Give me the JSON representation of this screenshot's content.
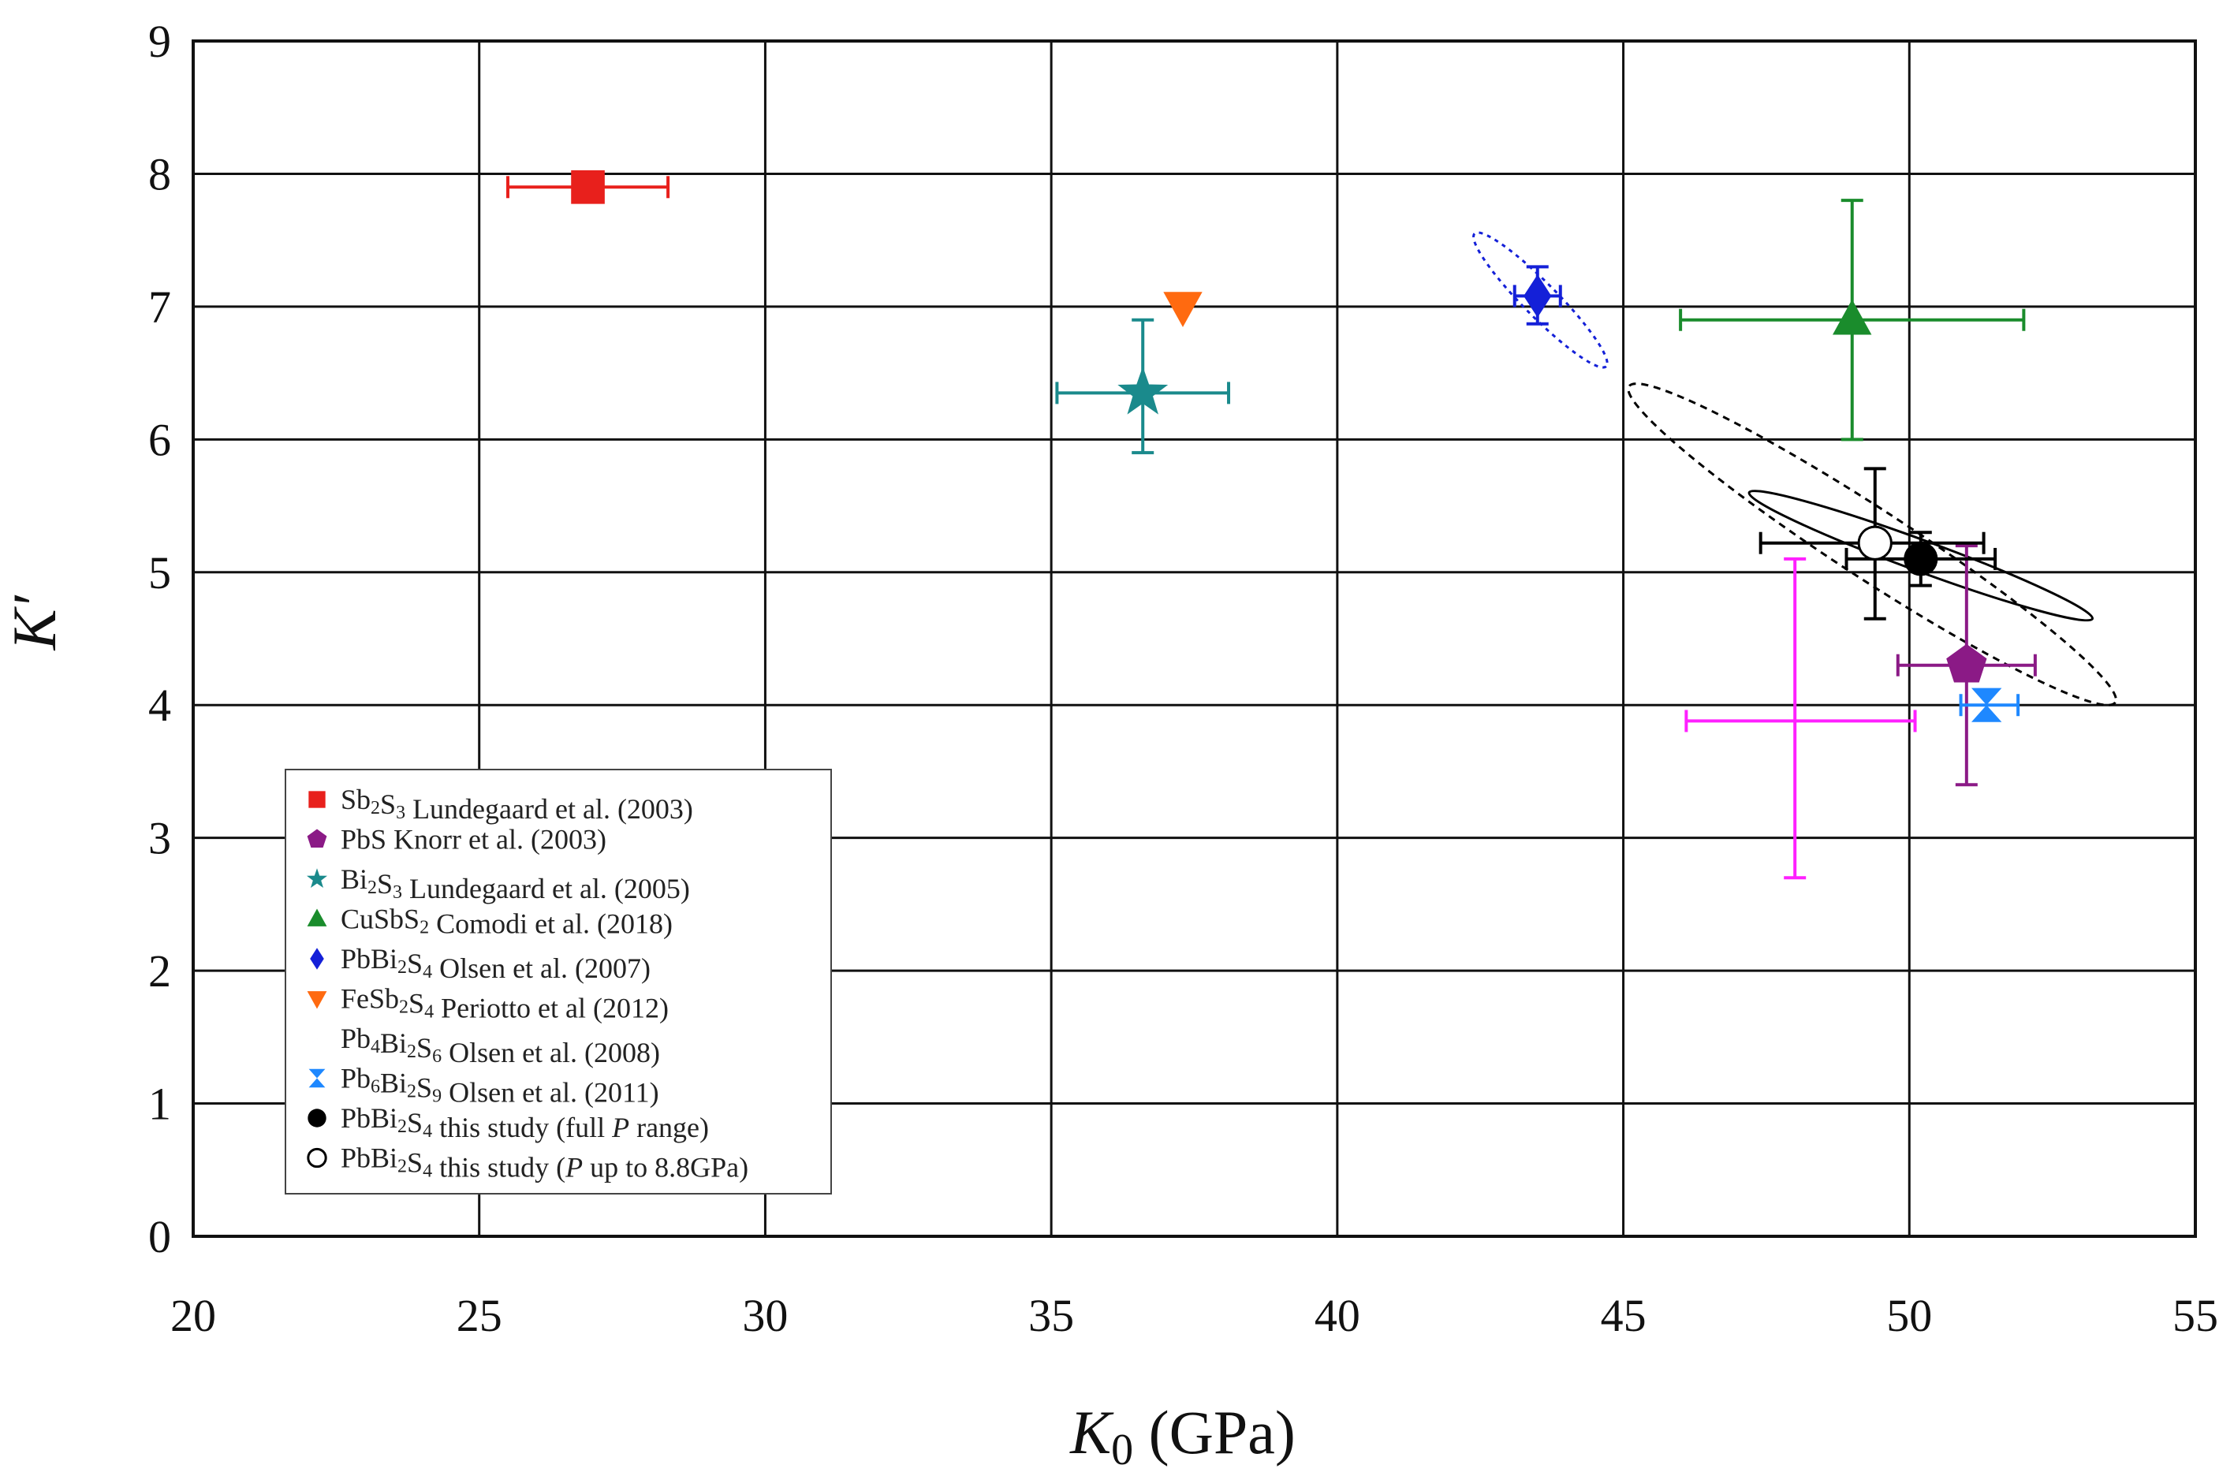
{
  "chart_data": {
    "type": "scatter",
    "title": "",
    "xlabel": {
      "main": "K",
      "sub": "0",
      "unit": " (GPa)"
    },
    "ylabel": "K′",
    "xlim": [
      20,
      55
    ],
    "ylim": [
      0,
      9
    ],
    "xticks": [
      20,
      25,
      30,
      35,
      40,
      45,
      50,
      55
    ],
    "yticks": [
      0,
      1,
      2,
      3,
      4,
      5,
      6,
      7,
      8,
      9
    ],
    "grid": true,
    "legend_position": "bottom-left",
    "series": [
      {
        "name": "Sb2S3 Lundegaard et al. (2003)",
        "marker": "square",
        "color": "#e8201c",
        "legend": [
          {
            "t": "Sb"
          },
          {
            "t": "2",
            "s": "sub"
          },
          {
            "t": "S"
          },
          {
            "t": "3",
            "s": "sub"
          },
          {
            "t": " Lundegaard et al. (2003)"
          }
        ],
        "points": [
          {
            "x": 26.9,
            "y": 7.9,
            "xerr": [
              25.5,
              28.3
            ]
          }
        ]
      },
      {
        "name": "PbS Knorr et al. (2003)",
        "marker": "pentagon",
        "color": "#8b1a86",
        "legend": [
          {
            "t": "PbS Knorr et al. (2003)"
          }
        ],
        "points": [
          {
            "x": 51.0,
            "y": 4.3,
            "xerr": [
              49.8,
              52.2
            ],
            "yerr": [
              3.4,
              5.2
            ]
          }
        ]
      },
      {
        "name": "Bi2S3 Lundegaard et al. (2005)",
        "marker": "star",
        "color": "#1a8a8c",
        "legend": [
          {
            "t": "Bi"
          },
          {
            "t": "2",
            "s": "sub"
          },
          {
            "t": "S"
          },
          {
            "t": "3",
            "s": "sub"
          },
          {
            "t": " Lundegaard et al. (2005)"
          }
        ],
        "points": [
          {
            "x": 36.6,
            "y": 6.35,
            "xerr": [
              35.1,
              38.1
            ],
            "yerr": [
              5.9,
              6.9
            ]
          }
        ]
      },
      {
        "name": "CuSbS2 Comodi et al. (2018)",
        "marker": "triangle-up",
        "color": "#1a8c2c",
        "legend": [
          {
            "t": "CuSbS"
          },
          {
            "t": "2",
            "s": "sub"
          },
          {
            "t": " Comodi et al. (2018)"
          }
        ],
        "points": [
          {
            "x": 49.0,
            "y": 6.9,
            "xerr": [
              46.0,
              52.0
            ],
            "yerr": [
              6.0,
              7.8
            ]
          }
        ]
      },
      {
        "name": "PbBi2S4 Olsen et al. (2007)",
        "marker": "diamond",
        "color": "#1420d8",
        "legend": [
          {
            "t": "PbBi"
          },
          {
            "t": "2",
            "s": "sub"
          },
          {
            "t": "S"
          },
          {
            "t": "4",
            "s": "sub"
          },
          {
            "t": " Olsen et al. (2007)"
          }
        ],
        "points": [
          {
            "x": 43.5,
            "y": 7.08,
            "xerr": [
              43.1,
              43.9
            ],
            "yerr": [
              6.87,
              7.3
            ]
          }
        ],
        "ellipse": {
          "from": [
            42.4,
            7.55
          ],
          "to": [
            44.7,
            6.55
          ],
          "minor_ratio": 0.18,
          "dash": "dotted",
          "color": "#1420d8"
        }
      },
      {
        "name": "FeSb2S4 Periotto et al (2012)",
        "marker": "triangle-down",
        "color": "#ff6a10",
        "legend": [
          {
            "t": "FeSb"
          },
          {
            "t": "2",
            "s": "sub"
          },
          {
            "t": "S"
          },
          {
            "t": "4",
            "s": "sub"
          },
          {
            "t": " Periotto et al (2012)"
          }
        ],
        "points": [
          {
            "x": 37.3,
            "y": 7.0
          }
        ]
      },
      {
        "name": "Pb4Bi2S6 Olsen et al. (2008)",
        "marker": "bowtie",
        "color": "#ff20ff",
        "legend": [
          {
            "t": "Pb"
          },
          {
            "t": "4",
            "s": "sub"
          },
          {
            "t": "Bi"
          },
          {
            "t": "2",
            "s": "sub"
          },
          {
            "t": "S"
          },
          {
            "t": "6",
            "s": "sub"
          },
          {
            "t": " Olsen et al. (2008)"
          }
        ],
        "points": [
          {
            "x": 48.0,
            "y": 3.88,
            "xerr": [
              46.1,
              50.1
            ],
            "yerr": [
              2.7,
              5.1
            ]
          }
        ]
      },
      {
        "name": "Pb6Bi2S9 Olsen et al. (2011)",
        "marker": "hourglass",
        "color": "#1e88ff",
        "legend": [
          {
            "t": "Pb"
          },
          {
            "t": "6",
            "s": "sub"
          },
          {
            "t": "Bi"
          },
          {
            "t": "2",
            "s": "sub"
          },
          {
            "t": "S"
          },
          {
            "t": "9",
            "s": "sub"
          },
          {
            "t": " Olsen et al. (2011)"
          }
        ],
        "points": [
          {
            "x": 51.35,
            "y": 4.0,
            "xerr": [
              50.9,
              51.9
            ]
          }
        ]
      },
      {
        "name": "PbBi2S4 this study (full P range)",
        "marker": "circle-filled",
        "color": "#000000",
        "legend": [
          {
            "t": "PbBi"
          },
          {
            "t": "2",
            "s": "sub"
          },
          {
            "t": "S"
          },
          {
            "t": "4",
            "s": "sub"
          },
          {
            "t": " this study (full "
          },
          {
            "t": "P",
            "s": "it"
          },
          {
            "t": " range)"
          }
        ],
        "points": [
          {
            "x": 50.2,
            "y": 5.1,
            "xerr": [
              48.9,
              51.5
            ],
            "yerr": [
              4.9,
              5.3
            ]
          }
        ],
        "ellipse": {
          "from": [
            47.2,
            5.6
          ],
          "to": [
            53.2,
            4.65
          ],
          "minor_ratio": 0.085,
          "dash": "solid",
          "color": "#000000"
        }
      },
      {
        "name": "PbBi2S4 this study (P up to 8.8GPa)",
        "marker": "circle-open",
        "color": "#000000",
        "legend": [
          {
            "t": "PbBi"
          },
          {
            "t": "2",
            "s": "sub"
          },
          {
            "t": "S"
          },
          {
            "t": "4",
            "s": "sub"
          },
          {
            "t": " this study ("
          },
          {
            "t": "P",
            "s": "it"
          },
          {
            "t": " up to 8.8GPa)"
          }
        ],
        "points": [
          {
            "x": 49.4,
            "y": 5.22,
            "xerr": [
              47.4,
              51.3
            ],
            "yerr": [
              4.65,
              5.78
            ]
          }
        ],
        "ellipse": {
          "from": [
            45.1,
            6.4
          ],
          "to": [
            53.6,
            4.02
          ],
          "minor_ratio": 0.12,
          "dash": "dashed",
          "color": "#000000"
        }
      }
    ]
  }
}
